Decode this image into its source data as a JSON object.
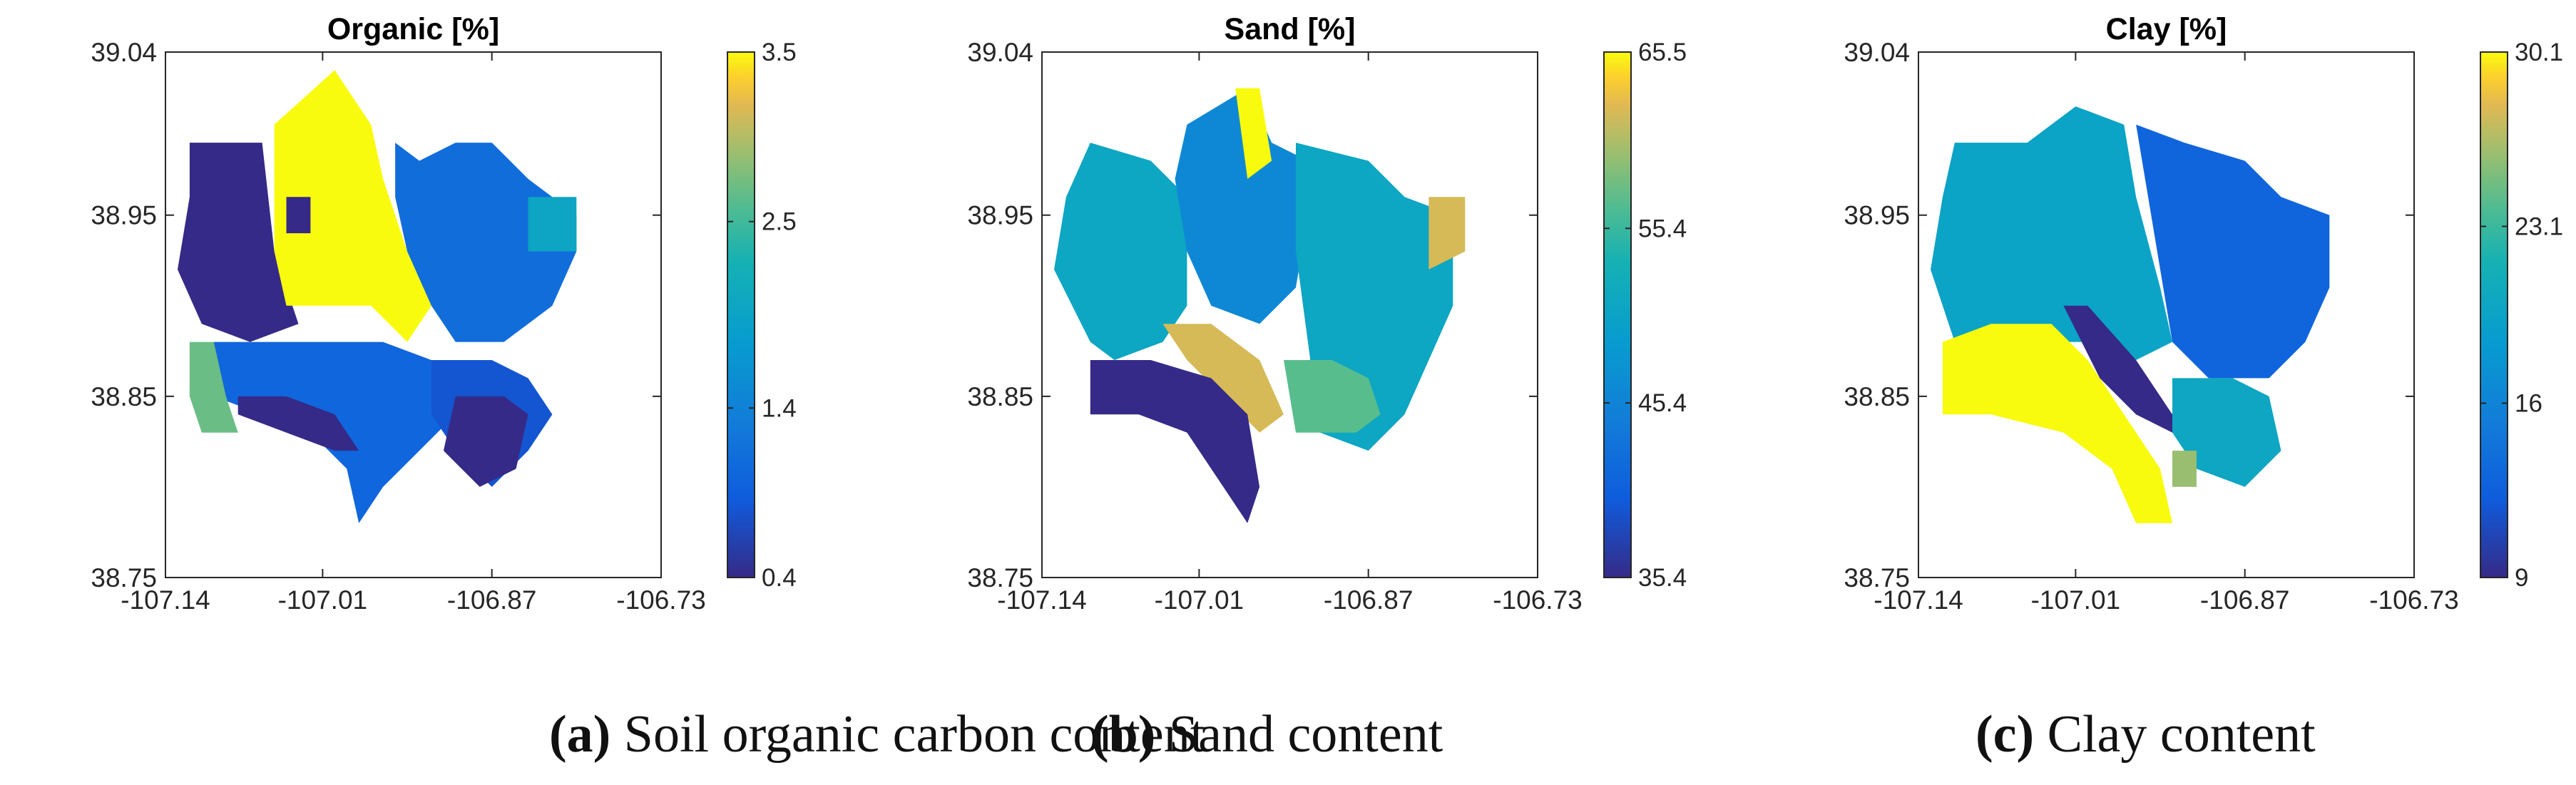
{
  "chart_data": [
    {
      "type": "heatmap",
      "title": "Organic [%]",
      "xticks": [
        "-107.14",
        "-107.01",
        "-106.87",
        "-106.73"
      ],
      "yticks": [
        "38.75",
        "38.85",
        "38.95",
        "39.04"
      ],
      "xlim": [
        -107.14,
        -106.73
      ],
      "ylim": [
        38.75,
        39.04
      ],
      "colorbar": {
        "min": 0.4,
        "max": 3.5,
        "ticks": [
          "3.5",
          "2.5",
          "1.4",
          "0.4"
        ],
        "tick_values": [
          3.5,
          2.5,
          1.4,
          0.4
        ]
      },
      "regions": [
        {
          "name": "nw-dark",
          "value": 0.4,
          "polygon": [
            [
              -107.12,
              38.99
            ],
            [
              -107.06,
              38.99
            ],
            [
              -107.05,
              38.93
            ],
            [
              -107.03,
              38.89
            ],
            [
              -107.07,
              38.88
            ],
            [
              -107.11,
              38.89
            ],
            [
              -107.13,
              38.92
            ],
            [
              -107.12,
              38.96
            ]
          ]
        },
        {
          "name": "n-yellow",
          "value": 3.5,
          "polygon": [
            [
              -107.05,
              39.0
            ],
            [
              -107.0,
              39.03
            ],
            [
              -106.97,
              39.0
            ],
            [
              -106.96,
              38.97
            ],
            [
              -106.94,
              38.93
            ],
            [
              -106.92,
              38.9
            ],
            [
              -106.94,
              38.88
            ],
            [
              -106.97,
              38.9
            ],
            [
              -107.0,
              38.9
            ],
            [
              -107.04,
              38.9
            ],
            [
              -107.05,
              38.93
            ]
          ]
        },
        {
          "name": "inner-dark",
          "value": 0.4,
          "polygon": [
            [
              -107.04,
              38.96
            ],
            [
              -107.02,
              38.96
            ],
            [
              -107.02,
              38.94
            ],
            [
              -107.04,
              38.94
            ]
          ]
        },
        {
          "name": "east-mid",
          "value": 1.1,
          "polygon": [
            [
              -106.95,
              38.99
            ],
            [
              -106.93,
              38.98
            ],
            [
              -106.9,
              38.99
            ],
            [
              -106.87,
              38.99
            ],
            [
              -106.84,
              38.97
            ],
            [
              -106.8,
              38.95
            ],
            [
              -106.8,
              38.93
            ],
            [
              -106.82,
              38.9
            ],
            [
              -106.86,
              38.88
            ],
            [
              -106.9,
              38.88
            ],
            [
              -106.92,
              38.9
            ],
            [
              -106.94,
              38.93
            ],
            [
              -106.95,
              38.96
            ]
          ]
        },
        {
          "name": "ne-green",
          "value": 2.0,
          "polygon": [
            [
              -106.84,
              38.96
            ],
            [
              -106.8,
              38.96
            ],
            [
              -106.8,
              38.93
            ],
            [
              -106.84,
              38.93
            ]
          ]
        },
        {
          "name": "s-mid",
          "value": 1.0,
          "polygon": [
            [
              -107.1,
              38.88
            ],
            [
              -107.06,
              38.88
            ],
            [
              -107.0,
              38.88
            ],
            [
              -106.96,
              38.88
            ],
            [
              -106.92,
              38.87
            ],
            [
              -106.9,
              38.86
            ],
            [
              -106.9,
              38.84
            ],
            [
              -106.93,
              38.82
            ],
            [
              -106.96,
              38.8
            ],
            [
              -106.98,
              38.78
            ],
            [
              -106.99,
              38.81
            ],
            [
              -107.02,
              38.83
            ],
            [
              -107.06,
              38.84
            ],
            [
              -107.1,
              38.85
            ]
          ]
        },
        {
          "name": "se-blue",
          "value": 0.8,
          "polygon": [
            [
              -106.92,
              38.87
            ],
            [
              -106.87,
              38.87
            ],
            [
              -106.84,
              38.86
            ],
            [
              -106.82,
              38.84
            ],
            [
              -106.84,
              38.82
            ],
            [
              -106.87,
              38.8
            ],
            [
              -106.9,
              38.82
            ],
            [
              -106.92,
              38.84
            ]
          ]
        },
        {
          "name": "s-dark-1",
          "value": 0.4,
          "polygon": [
            [
              -107.08,
              38.85
            ],
            [
              -107.04,
              38.85
            ],
            [
              -107.0,
              38.84
            ],
            [
              -106.98,
              38.82
            ],
            [
              -107.0,
              38.82
            ],
            [
              -107.04,
              38.83
            ],
            [
              -107.08,
              38.84
            ]
          ]
        },
        {
          "name": "s-dark-2",
          "value": 0.4,
          "polygon": [
            [
              -106.9,
              38.85
            ],
            [
              -106.86,
              38.85
            ],
            [
              -106.84,
              38.84
            ],
            [
              -106.85,
              38.81
            ],
            [
              -106.88,
              38.8
            ],
            [
              -106.91,
              38.82
            ]
          ]
        },
        {
          "name": "sw-olive",
          "value": 2.7,
          "polygon": [
            [
              -107.12,
              38.88
            ],
            [
              -107.1,
              38.88
            ],
            [
              -107.09,
              38.85
            ],
            [
              -107.08,
              38.83
            ],
            [
              -107.11,
              38.83
            ],
            [
              -107.12,
              38.85
            ]
          ]
        }
      ]
    },
    {
      "type": "heatmap",
      "title": "Sand [%]",
      "xticks": [
        "-107.14",
        "-107.01",
        "-106.87",
        "-106.73"
      ],
      "yticks": [
        "38.75",
        "38.85",
        "38.95",
        "39.04"
      ],
      "xlim": [
        -107.14,
        -106.73
      ],
      "ylim": [
        38.75,
        39.04
      ],
      "colorbar": {
        "min": 35.4,
        "max": 65.5,
        "ticks": [
          "65.5",
          "55.4",
          "45.4",
          "35.4"
        ],
        "tick_values": [
          65.5,
          55.4,
          45.4,
          35.4
        ]
      },
      "regions": [
        {
          "name": "w-green",
          "value": 51.0,
          "polygon": [
            [
              -107.1,
              38.99
            ],
            [
              -107.05,
              38.98
            ],
            [
              -107.02,
              38.96
            ],
            [
              -107.02,
              38.9
            ],
            [
              -107.04,
              38.88
            ],
            [
              -107.08,
              38.87
            ],
            [
              -107.1,
              38.88
            ],
            [
              -107.13,
              38.92
            ],
            [
              -107.12,
              38.96
            ]
          ]
        },
        {
          "name": "n-cyan",
          "value": 46.0,
          "polygon": [
            [
              -107.02,
              39.0
            ],
            [
              -106.97,
              39.02
            ],
            [
              -106.95,
              38.99
            ],
            [
              -106.92,
              38.98
            ],
            [
              -106.92,
              38.95
            ],
            [
              -106.93,
              38.91
            ],
            [
              -106.96,
              38.89
            ],
            [
              -107.0,
              38.9
            ],
            [
              -107.02,
              38.93
            ],
            [
              -107.03,
              38.97
            ]
          ]
        },
        {
          "name": "n-yellow",
          "value": 65.5,
          "polygon": [
            [
              -106.98,
              39.02
            ],
            [
              -106.96,
              39.02
            ],
            [
              -106.95,
              38.98
            ],
            [
              -106.97,
              38.97
            ]
          ]
        },
        {
          "name": "e-green",
          "value": 51.0,
          "polygon": [
            [
              -106.93,
              38.99
            ],
            [
              -106.87,
              38.98
            ],
            [
              -106.84,
              38.96
            ],
            [
              -106.8,
              38.95
            ],
            [
              -106.8,
              38.9
            ],
            [
              -106.82,
              38.87
            ],
            [
              -106.84,
              38.84
            ],
            [
              -106.87,
              38.82
            ],
            [
              -106.91,
              38.83
            ],
            [
              -106.92,
              38.88
            ],
            [
              -106.93,
              38.93
            ]
          ]
        },
        {
          "name": "ne-orange",
          "value": 62.0,
          "polygon": [
            [
              -106.82,
              38.96
            ],
            [
              -106.79,
              38.96
            ],
            [
              -106.79,
              38.93
            ],
            [
              -106.82,
              38.92
            ]
          ]
        },
        {
          "name": "s-orange",
          "value": 62.0,
          "polygon": [
            [
              -107.04,
              38.89
            ],
            [
              -107.0,
              38.89
            ],
            [
              -106.96,
              38.87
            ],
            [
              -106.94,
              38.84
            ],
            [
              -106.96,
              38.83
            ],
            [
              -106.99,
              38.85
            ],
            [
              -107.02,
              38.87
            ]
          ]
        },
        {
          "name": "center-tan",
          "value": 57.0,
          "polygon": [
            [
              -106.94,
              38.87
            ],
            [
              -106.9,
              38.87
            ],
            [
              -106.87,
              38.86
            ],
            [
              -106.86,
              38.84
            ],
            [
              -106.88,
              38.83
            ],
            [
              -106.93,
              38.83
            ]
          ]
        },
        {
          "name": "sw-dark",
          "value": 35.4,
          "polygon": [
            [
              -107.1,
              38.87
            ],
            [
              -107.05,
              38.87
            ],
            [
              -107.0,
              38.86
            ],
            [
              -106.97,
              38.84
            ],
            [
              -106.96,
              38.8
            ],
            [
              -106.97,
              38.78
            ],
            [
              -106.99,
              38.8
            ],
            [
              -107.02,
              38.83
            ],
            [
              -107.06,
              38.84
            ],
            [
              -107.1,
              38.84
            ]
          ]
        }
      ]
    },
    {
      "type": "heatmap",
      "title": "Clay [%]",
      "xticks": [
        "-107.14",
        "-107.01",
        "-106.87",
        "-106.73"
      ],
      "yticks": [
        "38.75",
        "38.85",
        "38.95",
        "39.04"
      ],
      "xlim": [
        -107.14,
        -106.73
      ],
      "ylim": [
        38.75,
        39.04
      ],
      "colorbar": {
        "min": 9,
        "max": 30.1,
        "ticks": [
          "30.1",
          "23.1",
          "16",
          "9"
        ],
        "tick_values": [
          30.1,
          23.1,
          16,
          9
        ]
      },
      "regions": [
        {
          "name": "w-teal",
          "value": 19.5,
          "polygon": [
            [
              -107.11,
              38.99
            ],
            [
              -107.05,
              38.99
            ],
            [
              -107.01,
              39.01
            ],
            [
              -106.97,
              39.0
            ],
            [
              -106.96,
              38.96
            ],
            [
              -106.94,
              38.91
            ],
            [
              -106.93,
              38.88
            ],
            [
              -106.96,
              38.87
            ],
            [
              -107.0,
              38.88
            ],
            [
              -107.04,
              38.88
            ],
            [
              -107.08,
              38.87
            ],
            [
              -107.11,
              38.88
            ],
            [
              -107.13,
              38.92
            ],
            [
              -107.12,
              38.96
            ]
          ]
        },
        {
          "name": "e-blue",
          "value": 13.0,
          "polygon": [
            [
              -106.96,
              39.0
            ],
            [
              -106.92,
              38.99
            ],
            [
              -106.87,
              38.98
            ],
            [
              -106.84,
              38.96
            ],
            [
              -106.8,
              38.95
            ],
            [
              -106.8,
              38.91
            ],
            [
              -106.82,
              38.88
            ],
            [
              -106.85,
              38.86
            ],
            [
              -106.9,
              38.86
            ],
            [
              -106.93,
              38.88
            ],
            [
              -106.94,
              38.92
            ]
          ]
        },
        {
          "name": "sw-yellow",
          "value": 30.1,
          "polygon": [
            [
              -107.12,
              38.88
            ],
            [
              -107.08,
              38.89
            ],
            [
              -107.03,
              38.89
            ],
            [
              -107.0,
              38.87
            ],
            [
              -106.97,
              38.84
            ],
            [
              -106.94,
              38.81
            ],
            [
              -106.93,
              38.78
            ],
            [
              -106.96,
              38.78
            ],
            [
              -106.98,
              38.81
            ],
            [
              -107.02,
              38.83
            ],
            [
              -107.08,
              38.84
            ],
            [
              -107.12,
              38.84
            ]
          ]
        },
        {
          "name": "center-dark",
          "value": 9.0,
          "polygon": [
            [
              -107.02,
              38.9
            ],
            [
              -107.0,
              38.9
            ],
            [
              -106.96,
              38.87
            ],
            [
              -106.93,
              38.84
            ],
            [
              -106.93,
              38.83
            ],
            [
              -106.96,
              38.84
            ],
            [
              -106.99,
              38.86
            ]
          ]
        },
        {
          "name": "se-teal",
          "value": 20.0,
          "polygon": [
            [
              -106.93,
              38.86
            ],
            [
              -106.88,
              38.86
            ],
            [
              -106.85,
              38.85
            ],
            [
              -106.84,
              38.82
            ],
            [
              -106.87,
              38.8
            ],
            [
              -106.91,
              38.81
            ],
            [
              -106.93,
              38.83
            ]
          ]
        },
        {
          "name": "s-orange",
          "value": 26.0,
          "polygon": [
            [
              -106.93,
              38.82
            ],
            [
              -106.91,
              38.82
            ],
            [
              -106.91,
              38.8
            ],
            [
              -106.93,
              38.8
            ]
          ]
        }
      ]
    }
  ],
  "captions": [
    {
      "letter": "(a)",
      "text": " Soil organic carbon content"
    },
    {
      "letter": "(b)",
      "text": " Sand content"
    },
    {
      "letter": "(c)",
      "text": " Clay content"
    }
  ]
}
